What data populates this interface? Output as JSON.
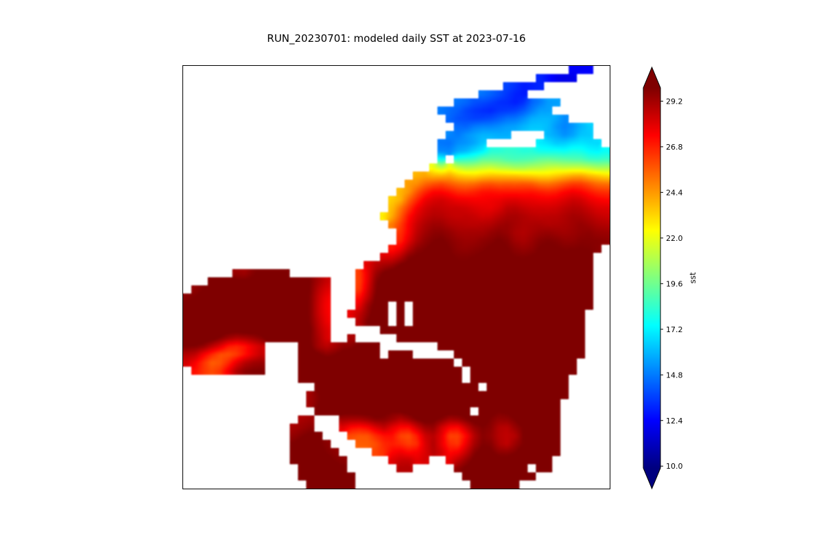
{
  "chart_data": {
    "type": "heatmap",
    "title": "RUN_20230701: modeled daily SST at 2023-07-16",
    "run_id": "RUN_20230701",
    "date_shown": "2023-07-16",
    "variable": "sst",
    "colorbar": {
      "label": "sst",
      "ticks": [
        10.0,
        12.4,
        14.8,
        17.2,
        19.6,
        22.0,
        24.4,
        26.8,
        29.2
      ],
      "vmin": 9.9,
      "vmax": 29.9,
      "extend": "both",
      "colormap": "jet",
      "colormap_stops": [
        {
          "t": 0.0,
          "c": "#00007f"
        },
        {
          "t": 0.125,
          "c": "#0000ff"
        },
        {
          "t": 0.375,
          "c": "#00ffff"
        },
        {
          "t": 0.625,
          "c": "#ffff00"
        },
        {
          "t": 0.875,
          "c": "#ff0000"
        },
        {
          "t": 1.0,
          "c": "#7f0000"
        }
      ]
    },
    "grid": {
      "comment_land": "dot = white (land / outside model domain)",
      "cols": 52,
      "rows": 52,
      "value_scale": {
        ".": null,
        "a": 10.5,
        "b": 12.0,
        "c": 14.0,
        "d": 16.0,
        "e": 17.5,
        "f": 19.0,
        "g": 20.5,
        "h": 22.0,
        "i": 23.5,
        "j": 25.0,
        "k": 26.0,
        "l": 27.0,
        "m": 28.0,
        "n": 29.0,
        "o": 29.8,
        "p": 30.3,
        "q": 30.6
      },
      "rows_encoded": [
        "...............................................cbb..",
        "...........................................cbbba....",
        ".......................................dcbbc........",
        "....................................edcbbc..........",
        ".................................edcbbccbbccdd......",
        "...............................dcbbccbbbccddc.......",
        "................................dccbbcddccddeec.....",
        ".................................ccddccddeeddccdde..",
        "................................dcddeedd....ddccdd..",
        "...............................ccddcd......eeddeedd.",
        "...............................cdccddeeffeeddeeffeed",
        "...............................d.effgffeeffggffeedef",
        "..............................gghhgghhggffgghhgghhgg",
        "............................hiijjiihhiijjiihhiijjiih",
        "...........................ijkkljjkklljkklljjkkllkkl",
        "..........................iiklmmlkklmmllkkmmllmmllkk",
        ".........................hhklmmnnmmllmmnnmmllmmnnmml",
        ".........................iklmnnmmnnmmllnnmmnnmmnnmmn",
        "........................giklmmnnmmnnmmnnoommnnoonnmm",
        ".........................jlmnnoonnmmnnoonnoommnnoonn",
        "..........................jmnnoonnoonnoommnnoonnoonn",
        "..........................imnoopponnooppnnooppnnoopp",
        ".........................impoopponnooppoonnppooppon.",
        "........................jmppooppooppooppooppooppoo..",
        "......................jnppooppooppooppooppooppoopp..",
        "......nloppon........jnppqqppqqppooppqqppqqppooppq..",
        "...noqqqqppqqppoon...inppqqppqqppooppqqppooppqqppo..",
        ".moqqqqppqqqqppqml...inppqqppqqppqqppooppqqppqqppo..",
        "npqqqqppqqqqppqqml...koppqqppqqppqqppooqqppqqppqqp..",
        "oqqqppqqqqppqqppml...kopq.p.qqppqqppqqppooppqqppqp..",
        "oqqppqqqqppqqppqml..koqqq.q.qqppqqppqqppqqppqqppq...",
        "pqqqqppqqppqqqppml...lqqp.p.qqppqqppqqppooppqqppq...",
        "pqqppqqqqppqqppqnm......opqqpqqppqqppooppqqppqqpp...",
        "pqqppqqqqppqqqppol..l.....opqqppqqppqqppqqppooppq...",
        "opqqqjijkl....opmlmoppop.......opqqppqqppqqppqqpp...",
        "noljiijklo....pqqppqqpqq.qqp.....ppqqppqqppqqppqq...",
        "mljijlopoo....qqpqqppqqpqqpqqqpqq.qqppqqppqqppqq....",
        ".mlklmoopo....pqqppqqppqqppqqpqqpp.qqppqqppqqppq....",
        "..............opqqppqqppqqppqqppqq.pqqppqqppqqp.....",
        "................opqqppqqppqqppqqppqq.pqqppqqppq.....",
        "...............mopqqppqqppqqppqqppqqppqqppqqppq.....",
        "...............npqpqqppooppqqppqqppqqppooppqqp......",
        "................opqppqqppooqqppqqpp.qooppqqppq......",
        "..............mn...opqqppooqqppqqppqqooppqqppq......",
        ".............mop...lkjkopkjkoqpkjkopqoklopqqpp......",
        ".............nppo...kjijlojijlopjijlopqolopqpo......",
        ".............oqpon...lkjklkjkopkjkoqpolkopqpop......",
        ".............pqqpon....lklolkloplkloqpoopqqppo......",
        ".............pqqqpon.....loplo..loppqqppqqppo.......",
        "..............pqqqpo......lo.....opqqpqqpq po........",
        "..............oqqqqpo.............opqqqppqo.........",
        "...............oqqqqp..............opqqpo..........."
      ]
    }
  }
}
